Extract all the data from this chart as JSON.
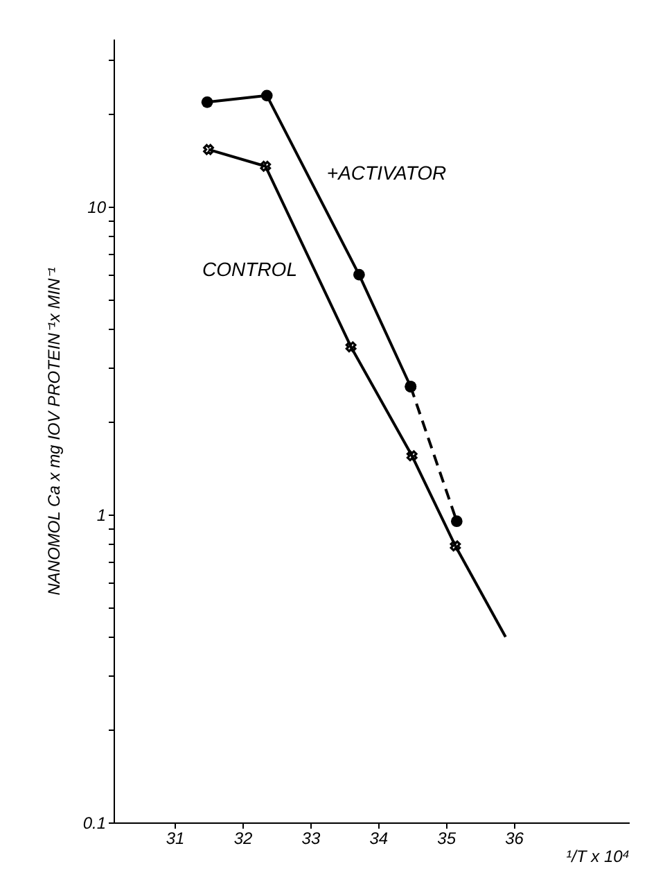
{
  "chart_data": {
    "type": "line",
    "xlabel": "¹/T x 10⁴",
    "ylabel": "NANOMOL Ca x mg IOV PROTEIN⁻¹x MIN⁻¹",
    "log": "y",
    "grid": false,
    "xlim": [
      30.1,
      37.7
    ],
    "xticks": [
      31,
      32,
      33,
      34,
      35,
      36
    ],
    "ylim": [
      0.1,
      35
    ],
    "yticks": [
      {
        "value": 0.1,
        "label": "0.1"
      },
      {
        "value": 0.2,
        "label": null
      },
      {
        "value": 0.3,
        "label": null
      },
      {
        "value": 0.4,
        "label": null
      },
      {
        "value": 0.5,
        "label": null
      },
      {
        "value": 0.6,
        "label": null
      },
      {
        "value": 0.7,
        "label": null
      },
      {
        "value": 0.8,
        "label": null
      },
      {
        "value": 0.9,
        "label": null
      },
      1,
      {
        "value": 2,
        "label": null
      },
      {
        "value": 3,
        "label": null
      },
      {
        "value": 4,
        "label": null
      },
      {
        "value": 5,
        "label": null
      },
      {
        "value": 6,
        "label": null
      },
      {
        "value": 7,
        "label": null
      },
      {
        "value": 8,
        "label": null
      },
      {
        "value": 9,
        "label": null
      },
      10,
      {
        "value": 20,
        "label": null
      },
      {
        "value": 30,
        "label": null
      }
    ],
    "series": [
      {
        "name": "+ACTIVATOR",
        "color": "#000000",
        "marker": "circle",
        "line_style": "solid",
        "x": [
          31.48,
          32.36,
          33.72,
          34.48
        ],
        "values": [
          21.8,
          22.9,
          6.0,
          2.6
        ]
      },
      {
        "color": "#000000",
        "marker": "circle",
        "line_style": "dashed",
        "x": [
          34.48,
          35.16
        ],
        "values": [
          2.6,
          0.95
        ]
      },
      {
        "name": "CONTROL",
        "color": "#000000",
        "marker": "cross",
        "line_style": "solid",
        "x": [
          31.5,
          32.34,
          33.6,
          34.5,
          35.14
        ],
        "values": [
          15.3,
          13.5,
          3.5,
          1.55,
          0.79
        ]
      },
      {
        "color": "#000000",
        "marker": "none",
        "line_style": "solid",
        "x": [
          35.14,
          35.88
        ],
        "values": [
          0.79,
          0.4
        ]
      }
    ]
  }
}
